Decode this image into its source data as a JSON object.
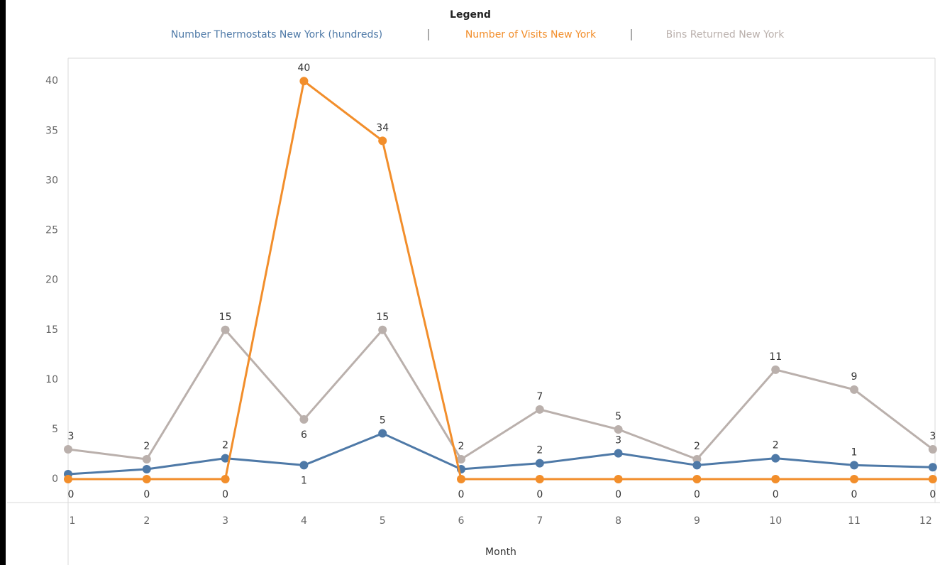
{
  "chart_data": {
    "type": "line",
    "legend_title": "Legend",
    "x_label": "Month",
    "categories": [
      "1",
      "2",
      "3",
      "4",
      "5",
      "6",
      "7",
      "8",
      "9",
      "10",
      "11",
      "12"
    ],
    "series": [
      {
        "name": "Number Thermostats New York (hundreds)",
        "color": "#4e79a7",
        "values": [
          0.5,
          1,
          2.1,
          1.4,
          4.6,
          1,
          1.6,
          2.6,
          1.4,
          2.1,
          1.4,
          1.2
        ],
        "value_labels": [
          null,
          null,
          "2",
          "1",
          "5",
          null,
          "2",
          "3",
          null,
          "2",
          "1",
          null
        ]
      },
      {
        "name": "Number of Visits New York",
        "color": "#f28e2b",
        "values": [
          0,
          0,
          0,
          40,
          34,
          0,
          0,
          0,
          0,
          0,
          0,
          0
        ]
      },
      {
        "name": "Bins Returned New York",
        "color": "#bab0ac",
        "values": [
          3,
          2,
          15,
          6,
          15,
          2,
          7,
          5,
          2,
          11,
          9,
          3
        ]
      }
    ],
    "ylim": [
      -2.35,
      42.3
    ],
    "yticks": [
      0,
      5,
      10,
      15,
      20,
      25,
      30,
      35,
      40
    ]
  }
}
